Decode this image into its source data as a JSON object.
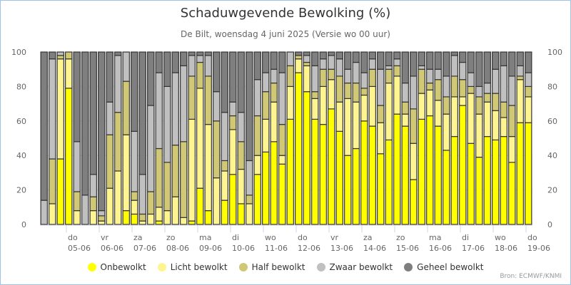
{
  "chart_data": {
    "type": "bar",
    "stacked": true,
    "title": "Schaduwgevende Bewolking (%)",
    "subtitle": "De Bilt, woensdag 4 juni 2025 (Versie wo 00 uur)",
    "xlabel": "",
    "ylabel": "",
    "ylim": [
      0,
      100
    ],
    "yticks": [
      0,
      20,
      40,
      60,
      80,
      100
    ],
    "grid": true,
    "legend_position": "bottom",
    "x_interval": "6-hourly (4 bars per day)",
    "day_ticks": [
      {
        "day": "do",
        "date": "05-06"
      },
      {
        "day": "vr",
        "date": "06-06"
      },
      {
        "day": "za",
        "date": "07-06"
      },
      {
        "day": "zo",
        "date": "08-06"
      },
      {
        "day": "ma",
        "date": "09-06"
      },
      {
        "day": "di",
        "date": "10-06"
      },
      {
        "day": "wo",
        "date": "11-06"
      },
      {
        "day": "do",
        "date": "12-06"
      },
      {
        "day": "vr",
        "date": "13-06"
      },
      {
        "day": "za",
        "date": "14-06"
      },
      {
        "day": "zo",
        "date": "15-06"
      },
      {
        "day": "ma",
        "date": "16-06"
      },
      {
        "day": "di",
        "date": "17-06"
      },
      {
        "day": "wo",
        "date": "18-06"
      },
      {
        "day": "do",
        "date": "19-06"
      }
    ],
    "series": [
      {
        "name": "Onbewolkt",
        "color": "#ffff00",
        "values": [
          0,
          0,
          38,
          79,
          0,
          0,
          0,
          0,
          0,
          0,
          8,
          6,
          0,
          0,
          2,
          0,
          0,
          0,
          2,
          21,
          8,
          0,
          14,
          29,
          12,
          0,
          29,
          42,
          48,
          35,
          61,
          88,
          77,
          61,
          58,
          67,
          54,
          40,
          44,
          60,
          57,
          41,
          49,
          64,
          57,
          26,
          61,
          63,
          57,
          43,
          51,
          69,
          47,
          39,
          51,
          49,
          51,
          36,
          59,
          59
        ]
      },
      {
        "name": "Licht bewolkt",
        "color": "#fff590",
        "values": [
          0,
          12,
          58,
          17,
          8,
          0,
          8,
          2,
          21,
          31,
          44,
          8,
          2,
          6,
          8,
          8,
          16,
          4,
          59,
          58,
          50,
          27,
          17,
          26,
          20,
          12,
          11,
          19,
          23,
          5,
          19,
          8,
          15,
          12,
          22,
          17,
          17,
          33,
          27,
          15,
          23,
          18,
          33,
          22,
          7,
          21,
          15,
          15,
          15,
          21,
          23,
          5,
          29,
          25,
          20,
          17,
          11,
          15,
          25,
          15
        ]
      },
      {
        "name": "Half bewolkt",
        "color": "#d0c874",
        "values": [
          0,
          26,
          2,
          4,
          11,
          0,
          8,
          3,
          31,
          34,
          31,
          5,
          4,
          13,
          34,
          28,
          30,
          44,
          25,
          15,
          28,
          33,
          6,
          8,
          16,
          5,
          23,
          16,
          11,
          18,
          12,
          2,
          2,
          4,
          10,
          6,
          15,
          9,
          11,
          4,
          10,
          10,
          8,
          6,
          7,
          20,
          14,
          4,
          12,
          10,
          12,
          10,
          4,
          10,
          5,
          10,
          9,
          18,
          2,
          6
        ]
      },
      {
        "name": "Zwaar bewolkt",
        "color": "#c0c0c0",
        "values": [
          14,
          58,
          2,
          0,
          29,
          17,
          13,
          3,
          19,
          33,
          17,
          35,
          23,
          50,
          44,
          44,
          42,
          44,
          12,
          4,
          12,
          17,
          28,
          8,
          17,
          20,
          21,
          11,
          8,
          30,
          8,
          0,
          4,
          15,
          6,
          8,
          10,
          8,
          12,
          9,
          6,
          21,
          2,
          4,
          11,
          19,
          2,
          8,
          6,
          12,
          12,
          10,
          8,
          6,
          6,
          14,
          21,
          17,
          6,
          8
        ]
      },
      {
        "name": "Geheel bewolkt",
        "color": "#7f7f7f",
        "values": [
          86,
          4,
          0,
          0,
          52,
          83,
          71,
          92,
          29,
          2,
          0,
          46,
          71,
          31,
          12,
          20,
          12,
          8,
          2,
          2,
          2,
          23,
          35,
          29,
          35,
          63,
          16,
          12,
          10,
          12,
          0,
          2,
          2,
          8,
          4,
          2,
          4,
          10,
          6,
          12,
          4,
          10,
          8,
          4,
          18,
          14,
          8,
          10,
          10,
          14,
          2,
          6,
          12,
          20,
          18,
          10,
          8,
          14,
          8,
          12
        ]
      }
    ]
  },
  "credits": "Bron: ECMWF/KNMI"
}
